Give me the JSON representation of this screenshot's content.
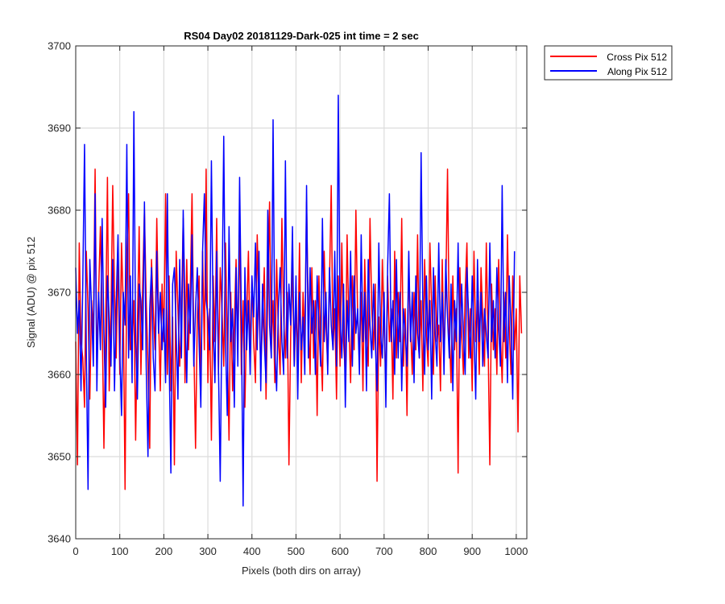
{
  "chart_data": {
    "type": "line",
    "title": "RS04 Day02 20181129-Dark-025 int time = 2 sec",
    "xlabel": "Pixels (both dirs on array)",
    "ylabel": "Signal (ADU) @ pix 512",
    "xlim": [
      0,
      1024
    ],
    "ylim": [
      3640,
      3700
    ],
    "xticks": [
      0,
      100,
      200,
      300,
      400,
      500,
      600,
      700,
      800,
      900,
      1000
    ],
    "yticks": [
      3640,
      3650,
      3660,
      3670,
      3680,
      3690,
      3700
    ],
    "grid": true,
    "legend_position": "outside-top-right",
    "x_step": 4,
    "series": [
      {
        "name": "Cross Pix 512",
        "color": "#ff0000",
        "values": [
          3664,
          3649,
          3676,
          3664,
          3662,
          3656,
          3675,
          3668,
          3657,
          3669,
          3665,
          3685,
          3661,
          3670,
          3678,
          3667,
          3651,
          3666,
          3684,
          3658,
          3667,
          3683,
          3670,
          3662,
          3675,
          3660,
          3676,
          3668,
          3646,
          3674,
          3682,
          3663,
          3664,
          3669,
          3652,
          3666,
          3678,
          3660,
          3671,
          3680,
          3669,
          3661,
          3651,
          3674,
          3668,
          3663,
          3679,
          3667,
          3658,
          3671,
          3664,
          3682,
          3660,
          3672,
          3658,
          3667,
          3649,
          3675,
          3668,
          3661,
          3667,
          3679,
          3659,
          3674,
          3663,
          3670,
          3682,
          3664,
          3651,
          3667,
          3672,
          3658,
          3675,
          3663,
          3685,
          3659,
          3668,
          3652,
          3672,
          3664,
          3679,
          3660,
          3673,
          3668,
          3661,
          3676,
          3664,
          3652,
          3670,
          3658,
          3666,
          3674,
          3663,
          3678,
          3660,
          3669,
          3656,
          3667,
          3675,
          3662,
          3672,
          3664,
          3659,
          3677,
          3668,
          3661,
          3666,
          3673,
          3657,
          3670,
          3681,
          3663,
          3669,
          3659,
          3674,
          3665,
          3660,
          3679,
          3667,
          3662,
          3670,
          3649,
          3665,
          3673,
          3661,
          3668,
          3662,
          3676,
          3659,
          3670,
          3664,
          3681,
          3667,
          3660,
          3673,
          3662,
          3669,
          3655,
          3672,
          3664,
          3658,
          3675,
          3666,
          3661,
          3671,
          3683,
          3663,
          3668,
          3657,
          3672,
          3661,
          3676,
          3664,
          3660,
          3677,
          3666,
          3659,
          3672,
          3663,
          3680,
          3667,
          3662,
          3670,
          3658,
          3674,
          3665,
          3661,
          3679,
          3668,
          3663,
          3671,
          3647,
          3667,
          3661,
          3674,
          3666,
          3659,
          3672,
          3664,
          3668,
          3657,
          3675,
          3662,
          3670,
          3664,
          3679,
          3661,
          3668,
          3655,
          3673,
          3666,
          3660,
          3670,
          3663,
          3677,
          3662,
          3669,
          3658,
          3674,
          3665,
          3661,
          3676,
          3668,
          3660,
          3672,
          3664,
          3666,
          3658,
          3674,
          3662,
          3670,
          3685,
          3665,
          3659,
          3672,
          3663,
          3668,
          3648,
          3673,
          3665,
          3660,
          3670,
          3676,
          3662,
          3668,
          3658,
          3675,
          3664,
          3669,
          3660,
          3673,
          3667,
          3661,
          3676,
          3664,
          3649,
          3671,
          3663,
          3668,
          3660,
          3674,
          3665,
          3659,
          3670,
          3662,
          3677,
          3666,
          3660,
          3672,
          3663,
          3668,
          3653,
          3672,
          3665
        ]
      },
      {
        "name": "Along Pix 512",
        "color": "#0000ff",
        "values": [
          3673,
          3665,
          3669,
          3658,
          3671,
          3688,
          3663,
          3646,
          3674,
          3668,
          3661,
          3682,
          3658,
          3670,
          3663,
          3679,
          3665,
          3656,
          3672,
          3667,
          3661,
          3674,
          3658,
          3669,
          3677,
          3663,
          3655,
          3670,
          3666,
          3688,
          3662,
          3672,
          3659,
          3692,
          3664,
          3657,
          3671,
          3669,
          3663,
          3681,
          3661,
          3650,
          3668,
          3673,
          3662,
          3658,
          3675,
          3665,
          3670,
          3663,
          3668,
          3659,
          3682,
          3662,
          3648,
          3671,
          3673,
          3665,
          3657,
          3674,
          3662,
          3680,
          3668,
          3659,
          3671,
          3665,
          3677,
          3661,
          3668,
          3673,
          3664,
          3656,
          3675,
          3682,
          3669,
          3667,
          3663,
          3686,
          3666,
          3659,
          3675,
          3661,
          3647,
          3668,
          3689,
          3664,
          3655,
          3678,
          3664,
          3668,
          3656,
          3673,
          3661,
          3684,
          3667,
          3644,
          3673,
          3663,
          3669,
          3660,
          3672,
          3667,
          3676,
          3663,
          3675,
          3658,
          3671,
          3664,
          3659,
          3680,
          3666,
          3662,
          3691,
          3663,
          3658,
          3668,
          3673,
          3664,
          3660,
          3686,
          3662,
          3671,
          3666,
          3678,
          3661,
          3672,
          3657,
          3670,
          3663,
          3667,
          3660,
          3683,
          3662,
          3673,
          3665,
          3669,
          3660,
          3672,
          3666,
          3661,
          3679,
          3664,
          3670,
          3660,
          3673,
          3666,
          3663,
          3675,
          3661,
          3694,
          3667,
          3662,
          3671,
          3656,
          3669,
          3664,
          3675,
          3661,
          3672,
          3665,
          3668,
          3660,
          3677,
          3664,
          3670,
          3658,
          3674,
          3666,
          3662,
          3671,
          3664,
          3658,
          3676,
          3665,
          3662,
          3670,
          3656,
          3673,
          3682,
          3664,
          3669,
          3660,
          3674,
          3662,
          3670,
          3658,
          3668,
          3665,
          3661,
          3675,
          3664,
          3670,
          3659,
          3672,
          3665,
          3662,
          3687,
          3668,
          3660,
          3672,
          3663,
          3669,
          3657,
          3673,
          3665,
          3661,
          3676,
          3664,
          3670,
          3660,
          3674,
          3667,
          3662,
          3671,
          3658,
          3669,
          3664,
          3676,
          3662,
          3671,
          3665,
          3660,
          3673,
          3667,
          3662,
          3672,
          3665,
          3657,
          3674,
          3664,
          3670,
          3661,
          3668,
          3665,
          3662,
          3676,
          3664,
          3669,
          3662,
          3673,
          3666,
          3661,
          3683,
          3664,
          3670,
          3659,
          3672,
          3666,
          3657,
          3675
        ]
      }
    ]
  }
}
